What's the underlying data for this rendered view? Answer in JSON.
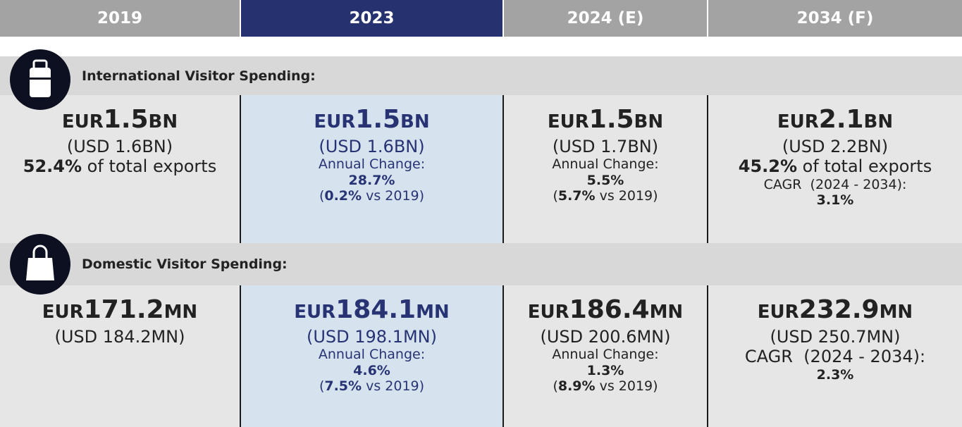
{
  "header": {
    "columns": [
      "2019",
      "2023",
      "2024 (E)",
      "2034 (F)"
    ]
  },
  "sections": [
    {
      "title": "International Visitor Spending:",
      "cells": [
        {
          "currency": "EUR",
          "amount": "1.5",
          "unit": "BN",
          "lines": [
            [
              {
                "text": "(USD 1.6BN)"
              }
            ],
            [
              {
                "text": "52.4%",
                "bold": true
              },
              {
                "text": " of total exports"
              }
            ]
          ]
        },
        {
          "currency": "EUR",
          "amount": "1.5",
          "unit": "BN",
          "lines": [
            [
              {
                "text": "(USD 1.6BN)"
              }
            ],
            [
              {
                "text": "Annual Change:"
              }
            ],
            [
              {
                "text": "28.7%",
                "bold": true
              }
            ],
            [
              {
                "text": "("
              },
              {
                "text": "0.2%",
                "bold": true
              },
              {
                "text": " vs 2019)"
              }
            ]
          ]
        },
        {
          "currency": "EUR",
          "amount": "1.5",
          "unit": "BN",
          "lines": [
            [
              {
                "text": "(USD 1.7BN)"
              }
            ],
            [
              {
                "text": "Annual Change:"
              }
            ],
            [
              {
                "text": "5.5%",
                "bold": true
              }
            ],
            [
              {
                "text": "("
              },
              {
                "text": "5.7%",
                "bold": true
              },
              {
                "text": " vs 2019)"
              }
            ]
          ]
        },
        {
          "currency": "EUR",
          "amount": "2.1",
          "unit": "BN",
          "lines": [
            [
              {
                "text": "(USD 2.2BN)"
              }
            ],
            [
              {
                "text": "45.2%",
                "bold": true
              },
              {
                "text": " of total exports"
              }
            ],
            [
              {
                "text": "CAGR  (2024 - 2034):"
              }
            ],
            [
              {
                "text": "3.1%",
                "bold": true
              }
            ]
          ]
        }
      ]
    },
    {
      "title": "Domestic Visitor Spending:",
      "cells": [
        {
          "currency": "EUR",
          "amount": "171.2",
          "unit": "MN",
          "lines": [
            [
              {
                "text": "(USD 184.2MN)"
              }
            ]
          ]
        },
        {
          "currency": "EUR",
          "amount": "184.1",
          "unit": "MN",
          "lines": [
            [
              {
                "text": "(USD 198.1MN)"
              }
            ],
            [
              {
                "text": "Annual Change:"
              }
            ],
            [
              {
                "text": "4.6%",
                "bold": true
              }
            ],
            [
              {
                "text": "("
              },
              {
                "text": "7.5%",
                "bold": true
              },
              {
                "text": " vs 2019)"
              }
            ]
          ]
        },
        {
          "currency": "EUR",
          "amount": "186.4",
          "unit": "MN",
          "lines": [
            [
              {
                "text": "(USD 200.6MN)"
              }
            ],
            [
              {
                "text": "Annual Change:"
              }
            ],
            [
              {
                "text": "1.3%",
                "bold": true
              }
            ],
            [
              {
                "text": "("
              },
              {
                "text": "8.9%",
                "bold": true
              },
              {
                "text": " vs 2019)"
              }
            ]
          ]
        },
        {
          "currency": "EUR",
          "amount": "232.9",
          "unit": "MN",
          "lines": [
            [
              {
                "text": "(USD 250.7MN)"
              }
            ],
            [
              {
                "text": "CAGR  (2024 - 2034):"
              }
            ],
            [
              {
                "text": "2.3%",
                "bold": true
              }
            ]
          ]
        }
      ]
    }
  ]
}
